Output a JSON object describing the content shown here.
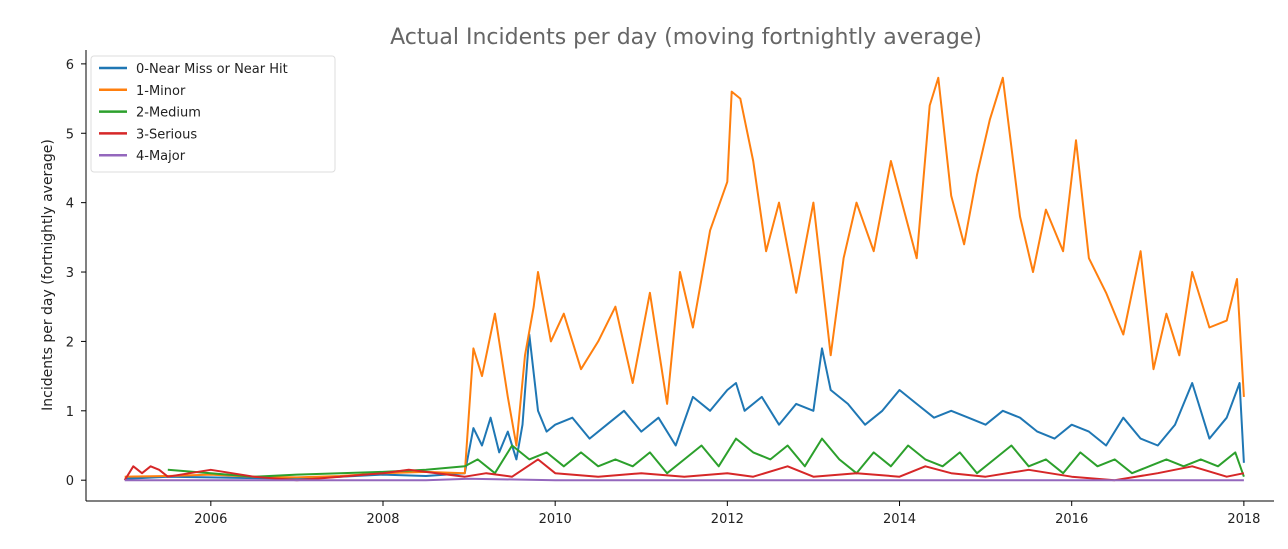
{
  "chart_data": {
    "type": "line",
    "title": "Actual Incidents per day (moving fortnightly average)",
    "xlabel": "",
    "ylabel": "Incidents per day (fortnightly average)",
    "xlim": [
      2004.55,
      2018.35
    ],
    "ylim": [
      -0.3,
      6.2
    ],
    "x_ticks": [
      2006,
      2008,
      2010,
      2012,
      2014,
      2016,
      2018
    ],
    "x_tick_labels": [
      "2006",
      "2008",
      "2010",
      "2012",
      "2014",
      "2016",
      "2018"
    ],
    "y_ticks": [
      0,
      1,
      2,
      3,
      4,
      5,
      6
    ],
    "y_tick_labels": [
      "0",
      "1",
      "2",
      "3",
      "4",
      "5",
      "6"
    ],
    "legend_position": "top-left",
    "grid": false,
    "series": [
      {
        "name": "0-Near Miss or Near Hit",
        "color": "#1f77b4",
        "x": [
          2005.0,
          2005.5,
          2006.0,
          2006.5,
          2007.0,
          2007.5,
          2008.0,
          2008.5,
          2008.95,
          2009.05,
          2009.15,
          2009.25,
          2009.35,
          2009.45,
          2009.55,
          2009.62,
          2009.7,
          2009.8,
          2009.9,
          2010.0,
          2010.2,
          2010.4,
          2010.6,
          2010.8,
          2011.0,
          2011.2,
          2011.4,
          2011.6,
          2011.8,
          2012.0,
          2012.1,
          2012.2,
          2012.4,
          2012.6,
          2012.8,
          2013.0,
          2013.1,
          2013.2,
          2013.4,
          2013.6,
          2013.8,
          2014.0,
          2014.2,
          2014.4,
          2014.6,
          2014.8,
          2015.0,
          2015.2,
          2015.4,
          2015.6,
          2015.8,
          2016.0,
          2016.2,
          2016.4,
          2016.6,
          2016.8,
          2017.0,
          2017.2,
          2017.4,
          2017.6,
          2017.8,
          2017.95,
          2018.0
        ],
        "y": [
          0.02,
          0.05,
          0.04,
          0.03,
          0.02,
          0.05,
          0.08,
          0.06,
          0.1,
          0.75,
          0.5,
          0.9,
          0.4,
          0.7,
          0.3,
          0.8,
          2.1,
          1.0,
          0.7,
          0.8,
          0.9,
          0.6,
          0.8,
          1.0,
          0.7,
          0.9,
          0.5,
          1.2,
          1.0,
          1.3,
          1.4,
          1.0,
          1.2,
          0.8,
          1.1,
          1.0,
          1.9,
          1.3,
          1.1,
          0.8,
          1.0,
          1.3,
          1.1,
          0.9,
          1.0,
          0.9,
          0.8,
          1.0,
          0.9,
          0.7,
          0.6,
          0.8,
          0.7,
          0.5,
          0.9,
          0.6,
          0.5,
          0.8,
          1.4,
          0.6,
          0.9,
          1.4,
          0.25
        ]
      },
      {
        "name": "1-Minor",
        "color": "#ff7f0e",
        "x": [
          2005.0,
          2005.5,
          2006.0,
          2006.5,
          2007.0,
          2007.5,
          2008.0,
          2008.5,
          2008.95,
          2009.05,
          2009.15,
          2009.3,
          2009.45,
          2009.55,
          2009.65,
          2009.75,
          2009.8,
          2009.95,
          2010.1,
          2010.3,
          2010.5,
          2010.7,
          2010.9,
          2011.1,
          2011.3,
          2011.45,
          2011.6,
          2011.8,
          2012.0,
          2012.05,
          2012.15,
          2012.3,
          2012.45,
          2012.6,
          2012.8,
          2013.0,
          2013.2,
          2013.35,
          2013.5,
          2013.7,
          2013.9,
          2014.05,
          2014.2,
          2014.35,
          2014.45,
          2014.6,
          2014.75,
          2014.9,
          2015.05,
          2015.2,
          2015.4,
          2015.55,
          2015.7,
          2015.9,
          2016.05,
          2016.2,
          2016.4,
          2016.6,
          2016.8,
          2016.95,
          2017.1,
          2017.25,
          2017.4,
          2017.6,
          2017.8,
          2017.92,
          2018.0
        ],
        "y": [
          0.05,
          0.06,
          0.08,
          0.05,
          0.04,
          0.06,
          0.1,
          0.12,
          0.1,
          1.9,
          1.5,
          2.4,
          1.2,
          0.5,
          1.8,
          2.5,
          3.0,
          2.0,
          2.4,
          1.6,
          2.0,
          2.5,
          1.4,
          2.7,
          1.1,
          3.0,
          2.2,
          3.6,
          4.3,
          5.6,
          5.5,
          4.6,
          3.3,
          4.0,
          2.7,
          4.0,
          1.8,
          3.2,
          4.0,
          3.3,
          4.6,
          3.9,
          3.2,
          5.4,
          5.8,
          4.1,
          3.4,
          4.4,
          5.2,
          5.8,
          3.8,
          3.0,
          3.9,
          3.3,
          4.9,
          3.2,
          2.7,
          2.1,
          3.3,
          1.6,
          2.4,
          1.8,
          3.0,
          2.2,
          2.3,
          2.9,
          1.2
        ]
      },
      {
        "name": "2-Medium",
        "color": "#2ca02c",
        "x": [
          2005.5,
          2006.0,
          2006.5,
          2007.0,
          2007.5,
          2008.0,
          2008.5,
          2008.95,
          2009.1,
          2009.3,
          2009.5,
          2009.7,
          2009.9,
          2010.1,
          2010.3,
          2010.5,
          2010.7,
          2010.9,
          2011.1,
          2011.3,
          2011.5,
          2011.7,
          2011.9,
          2012.1,
          2012.3,
          2012.5,
          2012.7,
          2012.9,
          2013.1,
          2013.3,
          2013.5,
          2013.7,
          2013.9,
          2014.1,
          2014.3,
          2014.5,
          2014.7,
          2014.9,
          2015.1,
          2015.3,
          2015.5,
          2015.7,
          2015.9,
          2016.1,
          2016.3,
          2016.5,
          2016.7,
          2016.9,
          2017.1,
          2017.3,
          2017.5,
          2017.7,
          2017.9,
          2018.0
        ],
        "y": [
          0.15,
          0.1,
          0.05,
          0.08,
          0.1,
          0.12,
          0.15,
          0.2,
          0.3,
          0.1,
          0.5,
          0.3,
          0.4,
          0.2,
          0.4,
          0.2,
          0.3,
          0.2,
          0.4,
          0.1,
          0.3,
          0.5,
          0.2,
          0.6,
          0.4,
          0.3,
          0.5,
          0.2,
          0.6,
          0.3,
          0.1,
          0.4,
          0.2,
          0.5,
          0.3,
          0.2,
          0.4,
          0.1,
          0.3,
          0.5,
          0.2,
          0.3,
          0.1,
          0.4,
          0.2,
          0.3,
          0.1,
          0.2,
          0.3,
          0.2,
          0.3,
          0.2,
          0.4,
          0.05
        ]
      },
      {
        "name": "3-Serious",
        "color": "#d62728",
        "x": [
          2005.0,
          2005.1,
          2005.2,
          2005.3,
          2005.4,
          2005.5,
          2006.0,
          2006.5,
          2007.0,
          2007.5,
          2008.0,
          2008.3,
          2008.95,
          2009.2,
          2009.5,
          2009.8,
          2010.0,
          2010.5,
          2011.0,
          2011.5,
          2012.0,
          2012.3,
          2012.7,
          2013.0,
          2013.5,
          2014.0,
          2014.3,
          2014.6,
          2015.0,
          2015.5,
          2016.0,
          2016.5,
          2017.0,
          2017.4,
          2017.8,
          2018.0
        ],
        "y": [
          0.0,
          0.2,
          0.1,
          0.2,
          0.15,
          0.05,
          0.15,
          0.05,
          0.0,
          0.05,
          0.1,
          0.15,
          0.05,
          0.1,
          0.05,
          0.3,
          0.1,
          0.05,
          0.1,
          0.05,
          0.1,
          0.05,
          0.2,
          0.05,
          0.1,
          0.05,
          0.2,
          0.1,
          0.05,
          0.15,
          0.05,
          0.0,
          0.1,
          0.2,
          0.05,
          0.1
        ]
      },
      {
        "name": "4-Major",
        "color": "#9467bd",
        "x": [
          2005.0,
          2008.5,
          2009.0,
          2010.0,
          2012.0,
          2014.0,
          2016.0,
          2018.0
        ],
        "y": [
          0.0,
          0.0,
          0.02,
          0.0,
          0.0,
          0.0,
          0.0,
          0.0
        ]
      }
    ]
  }
}
